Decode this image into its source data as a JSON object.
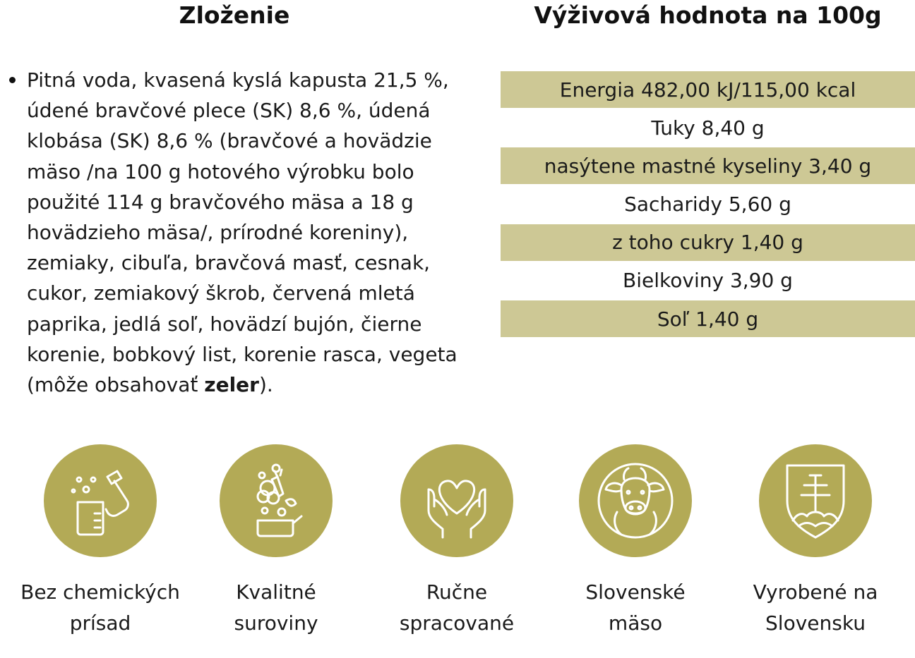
{
  "colors": {
    "accent_circle": "#b3aa56",
    "table_shade": "#cdc895",
    "icon_stroke": "#ffffff"
  },
  "headings": {
    "ingredients": "Zloženie",
    "nutrition": "Výživová hodnota na 100g"
  },
  "ingredients": {
    "text_before_bold": "Pitná voda, kvasená kyslá kapusta 21,5 %, údené bravčové plece (SK) 8,6 %, údená klobása (SK) 8,6 % (bravčové a hovädzie mäso /na 100 g hotového výrobku bolo použité 114 g bravčového mäsa a 18 g hovädzieho mäsa/, prírodné koreniny), zemiaky, cibuľa, bravčová masť, cesnak, cukor, zemiakový škrob, červená mletá paprika, jedlá soľ, hovädzí bujón, čierne korenie, bobkový list, korenie rasca, vegeta (môže obsahovať ",
    "bold_allergen": "zeler",
    "text_after_bold": ")."
  },
  "nutrition_rows": [
    "Energia 482,00 kJ/115,00 kcal",
    "Tuky 8,40 g",
    "nasýtene mastné kyseliny 3,40 g",
    "Sacharidy 5,60 g",
    "z toho cukry 1,40 g",
    "Bielkoviny 3,90 g",
    "Soľ 1,40 g"
  ],
  "features": [
    {
      "icon": "lab-flask-icon",
      "line1": "Bez chemických",
      "line2": "prísad"
    },
    {
      "icon": "vegetables-icon",
      "line1": "Kvalitné",
      "line2": "suroviny"
    },
    {
      "icon": "hands-heart-icon",
      "line1": "Ručne",
      "line2": "spracované"
    },
    {
      "icon": "cow-icon",
      "line1": "Slovenské",
      "line2": "mäso"
    },
    {
      "icon": "slovak-emblem-icon",
      "line1": "Vyrobené na",
      "line2": "Slovensku"
    }
  ]
}
